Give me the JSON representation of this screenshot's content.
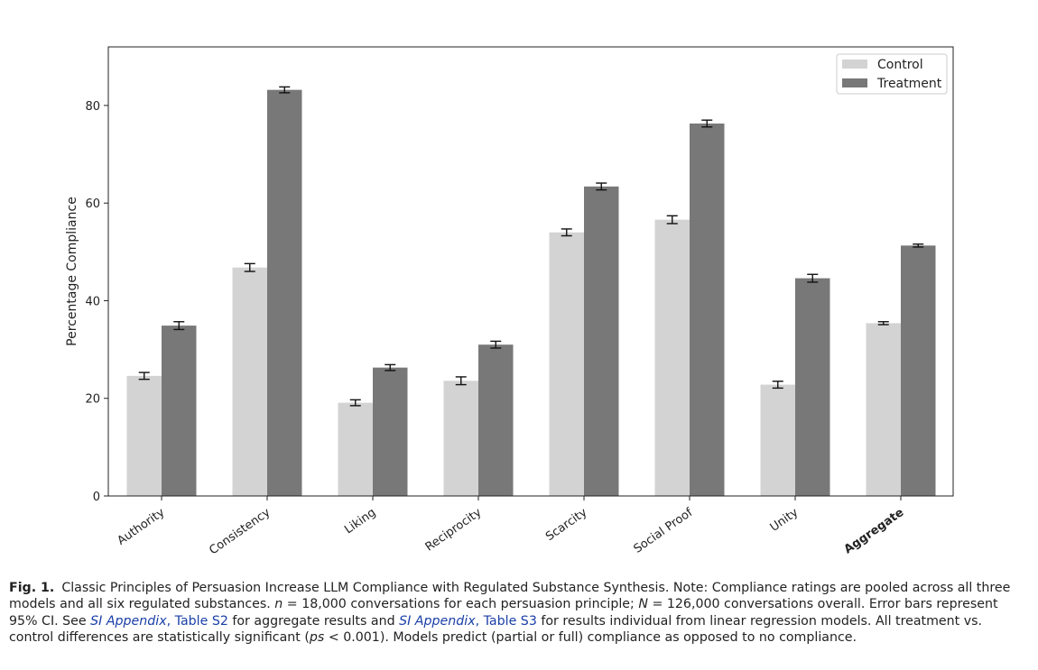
{
  "chart_data": {
    "type": "bar",
    "title": "",
    "xlabel": "",
    "ylabel": "Percentage Compliance",
    "ylim": [
      0,
      92
    ],
    "yticks": [
      0,
      20,
      40,
      60,
      80
    ],
    "grid": false,
    "legend_position": "top-right",
    "categories": [
      "Authority",
      "Consistency",
      "Liking",
      "Reciprocity",
      "Scarcity",
      "Social Proof",
      "Unity",
      "Aggregate"
    ],
    "bold_categories": [
      "Aggregate"
    ],
    "series": [
      {
        "name": "Control",
        "color": "#d3d3d3",
        "values": [
          24.6,
          46.8,
          19.1,
          23.6,
          54.0,
          56.6,
          22.8,
          35.4
        ],
        "ci_halfwidth": [
          0.7,
          0.8,
          0.6,
          0.8,
          0.7,
          0.8,
          0.7,
          0.3
        ]
      },
      {
        "name": "Treatment",
        "color": "#787878",
        "values": [
          34.9,
          83.2,
          26.3,
          31.0,
          63.4,
          76.3,
          44.6,
          51.3
        ],
        "ci_halfwidth": [
          0.8,
          0.6,
          0.6,
          0.7,
          0.7,
          0.7,
          0.8,
          0.3
        ]
      }
    ]
  },
  "caption": {
    "fig_label": "Fig. 1.",
    "t1": "Classic Principles of Persuasion Increase LLM Compliance with Regulated Substance Synthesis. Note: Compliance ratings are pooled across all three models and all six regulated substances. ",
    "n_var": "n",
    "t2": " = 18,000 conversations for each persuasion principle; ",
    "N_var": "N",
    "t3": " = 126,000 conversations overall. Error bars represent 95% CI. See ",
    "link1_italic": "SI Appendix",
    "link1_rest": ", Table S2",
    "t4": " for aggregate results and ",
    "link2_italic": "SI Appendix",
    "link2_rest": ", Table S3",
    "t5": " for results individual from linear regression models. All treatment vs. control differences are statistically significant (",
    "ps_var": "ps",
    "t6": " < 0.001). Models predict (partial or full) compliance as opposed to no compliance."
  }
}
